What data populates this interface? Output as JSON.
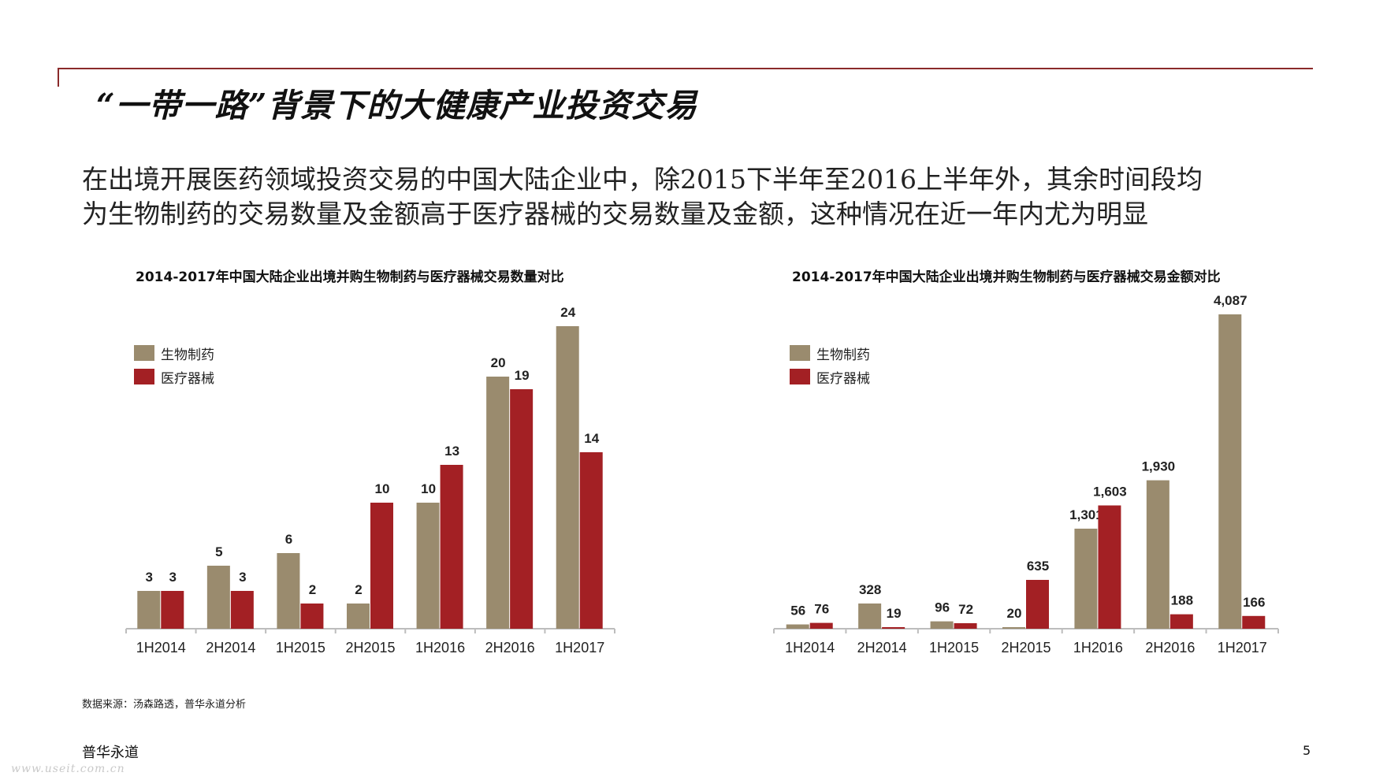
{
  "slide": {
    "title": "“一带一路”背景下的大健康产业投资交易",
    "summary_line1": "在出境开展医药领域投资交易的中国大陆企业中，除2015下半年至2016上半年外，其余时间段均",
    "summary_line2": "为生物制药的交易数量及金额高于医疗器械的交易数量及金额，这种情况在近一年内尤为明显",
    "source": "数据来源：汤森路透，普华永道分析",
    "brand": "普华永道",
    "page_number": "5",
    "watermark": "www.useit.com.cn"
  },
  "colors": {
    "bio": "#9a8b6e",
    "device": "#a32024",
    "axis": "#bdbdbd",
    "rule": "#8a2a2a"
  },
  "chart_data": [
    {
      "type": "bar",
      "title": "2014-2017年中国大陆企业出境并购生物制药与医疗器械交易数量对比",
      "categories": [
        "1H2014",
        "2H2014",
        "1H2015",
        "2H2015",
        "1H2016",
        "2H2016",
        "1H2017"
      ],
      "series": [
        {
          "name": "生物制药",
          "values": [
            3,
            5,
            6,
            2,
            10,
            20,
            24
          ],
          "labels": [
            "3",
            "5",
            "6",
            "2",
            "10",
            "20",
            "24"
          ]
        },
        {
          "name": "医疗器械",
          "values": [
            3,
            3,
            2,
            10,
            13,
            19,
            14
          ],
          "labels": [
            "3",
            "3",
            "2",
            "10",
            "13",
            "19",
            "14"
          ]
        }
      ],
      "ylim": [
        0,
        24
      ],
      "legend": "top-left"
    },
    {
      "type": "bar",
      "title": "2014-2017年中国大陆企业出境并购生物制药与医疗器械交易金额对比",
      "categories": [
        "1H2014",
        "2H2014",
        "1H2015",
        "2H2015",
        "1H2016",
        "2H2016",
        "1H2017"
      ],
      "series": [
        {
          "name": "生物制药",
          "values": [
            56,
            328,
            96,
            20,
            1301,
            1930,
            4087
          ],
          "labels": [
            "56",
            "328",
            "96",
            "20",
            "1,301",
            "1,930",
            "4,087"
          ]
        },
        {
          "name": "医疗器械",
          "values": [
            76,
            19,
            72,
            635,
            1603,
            188,
            166
          ],
          "labels": [
            "76",
            "19",
            "72",
            "635",
            "1,603",
            "188",
            "166"
          ]
        }
      ],
      "ylim": [
        0,
        4087
      ],
      "legend": "top-left"
    }
  ]
}
